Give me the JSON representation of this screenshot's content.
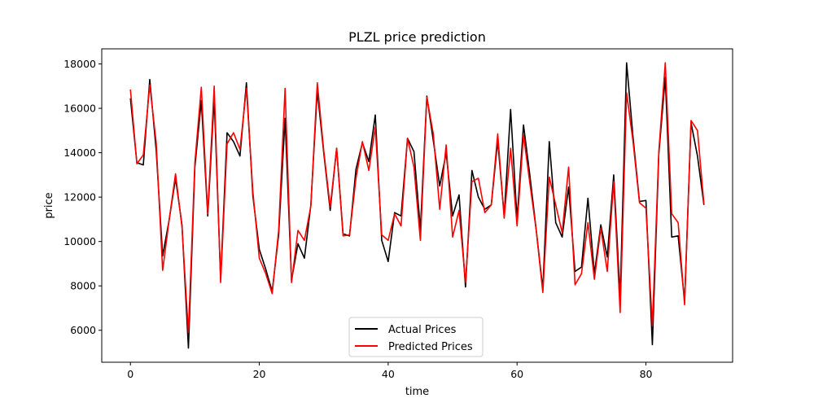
{
  "chart_data": {
    "type": "line",
    "title": "PLZL price prediction",
    "xlabel": "time",
    "ylabel": "price",
    "xlim": [
      -4.45,
      93.45
    ],
    "ylim": [
      4560,
      18680
    ],
    "xticks": [
      0,
      20,
      40,
      60,
      80
    ],
    "yticks": [
      6000,
      8000,
      10000,
      12000,
      14000,
      16000,
      18000
    ],
    "grid": false,
    "legend_position": "lower center",
    "x": [
      0,
      1,
      2,
      3,
      4,
      5,
      6,
      7,
      8,
      9,
      10,
      11,
      12,
      13,
      14,
      15,
      16,
      17,
      18,
      19,
      20,
      21,
      22,
      23,
      24,
      25,
      26,
      27,
      28,
      29,
      30,
      31,
      32,
      33,
      34,
      35,
      36,
      37,
      38,
      39,
      40,
      41,
      42,
      43,
      44,
      45,
      46,
      47,
      48,
      49,
      50,
      51,
      52,
      53,
      54,
      55,
      56,
      57,
      58,
      59,
      60,
      61,
      62,
      63,
      64,
      65,
      66,
      67,
      68,
      69,
      70,
      71,
      72,
      73,
      74,
      75,
      76,
      77,
      78,
      79,
      80,
      81,
      82,
      83,
      84,
      85,
      86,
      87,
      88,
      89
    ],
    "series": [
      {
        "name": "Actual Prices",
        "color": "#000000",
        "values": [
          16450,
          13550,
          13450,
          17300,
          14100,
          9350,
          10950,
          12850,
          10750,
          5200,
          13350,
          16350,
          11150,
          16450,
          8300,
          14900,
          14500,
          13850,
          17150,
          12050,
          9650,
          8750,
          7750,
          10300,
          15550,
          8250,
          9900,
          9250,
          11650,
          16800,
          14000,
          11400,
          14200,
          10350,
          10250,
          13250,
          14450,
          13600,
          15700,
          10050,
          9100,
          11300,
          11150,
          14650,
          14050,
          10550,
          16550,
          14550,
          12500,
          14000,
          11150,
          12100,
          7950,
          13200,
          12000,
          11450,
          11650,
          14550,
          11150,
          15950,
          11000,
          15250,
          12950,
          10450,
          7850,
          14500,
          10850,
          10200,
          12450,
          8650,
          8850,
          11950,
          8550,
          10750,
          9300,
          13000,
          7450,
          18050,
          14700,
          11800,
          11850,
          5350,
          13950,
          17400,
          10200,
          10250,
          7300,
          15350,
          13850,
          11650
        ]
      },
      {
        "name": "Predicted Prices",
        "color": "#ff0000",
        "values": [
          16850,
          13500,
          13900,
          17050,
          14450,
          8700,
          10950,
          13050,
          10650,
          5900,
          13550,
          16950,
          11250,
          17000,
          8150,
          14400,
          14900,
          14150,
          16900,
          12250,
          9250,
          8550,
          7650,
          10500,
          16900,
          8150,
          10500,
          10050,
          11600,
          17150,
          14100,
          11550,
          14200,
          10250,
          10300,
          12850,
          14500,
          13200,
          15150,
          10300,
          10050,
          11250,
          10700,
          14650,
          13350,
          10050,
          16500,
          14850,
          11450,
          14350,
          10200,
          11400,
          8150,
          12700,
          12850,
          11300,
          11650,
          14850,
          11050,
          14200,
          10700,
          14800,
          12600,
          10450,
          7700,
          12900,
          11650,
          10400,
          13350,
          8050,
          8550,
          10850,
          8300,
          10600,
          8650,
          12700,
          6800,
          16700,
          14500,
          11750,
          11500,
          6200,
          14050,
          18050,
          11250,
          10850,
          7150,
          15450,
          15000,
          11700
        ]
      }
    ]
  }
}
